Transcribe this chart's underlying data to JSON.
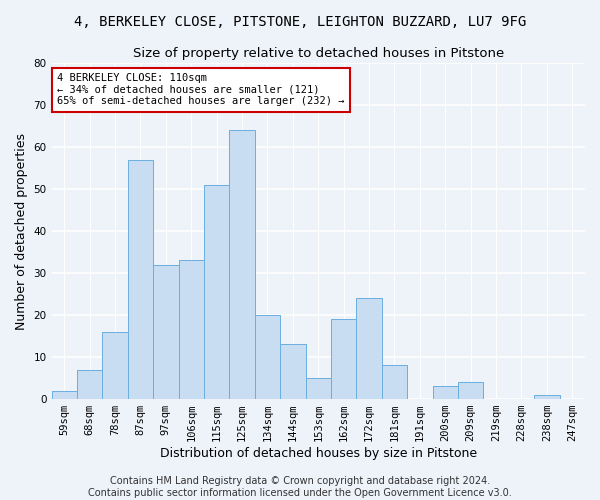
{
  "title_line1": "4, BERKELEY CLOSE, PITSTONE, LEIGHTON BUZZARD, LU7 9FG",
  "title_line2": "Size of property relative to detached houses in Pitstone",
  "xlabel": "Distribution of detached houses by size in Pitstone",
  "ylabel": "Number of detached properties",
  "categories": [
    "59sqm",
    "68sqm",
    "78sqm",
    "87sqm",
    "97sqm",
    "106sqm",
    "115sqm",
    "125sqm",
    "134sqm",
    "144sqm",
    "153sqm",
    "162sqm",
    "172sqm",
    "181sqm",
    "191sqm",
    "200sqm",
    "209sqm",
    "219sqm",
    "228sqm",
    "238sqm",
    "247sqm"
  ],
  "values": [
    2,
    7,
    16,
    57,
    32,
    33,
    51,
    64,
    20,
    13,
    5,
    19,
    24,
    8,
    0,
    3,
    4,
    0,
    0,
    1,
    0
  ],
  "bar_color": "#c8ddf2",
  "bar_edge_color": "#6aaee0",
  "annotation_text": "4 BERKELEY CLOSE: 110sqm\n← 34% of detached houses are smaller (121)\n65% of semi-detached houses are larger (232) →",
  "annotation_box_color": "white",
  "annotation_box_edge_color": "#cc0000",
  "ylim": [
    0,
    80
  ],
  "yticks": [
    0,
    10,
    20,
    30,
    40,
    50,
    60,
    70,
    80
  ],
  "footer_line1": "Contains HM Land Registry data © Crown copyright and database right 2024.",
  "footer_line2": "Contains public sector information licensed under the Open Government Licence v3.0.",
  "bg_color": "#eef2f9",
  "grid_color": "white",
  "title_fontsize": 10,
  "subtitle_fontsize": 9.5,
  "ylabel_fontsize": 9,
  "xlabel_fontsize": 9,
  "tick_fontsize": 7.5,
  "annot_fontsize": 7.5,
  "footer_fontsize": 7
}
